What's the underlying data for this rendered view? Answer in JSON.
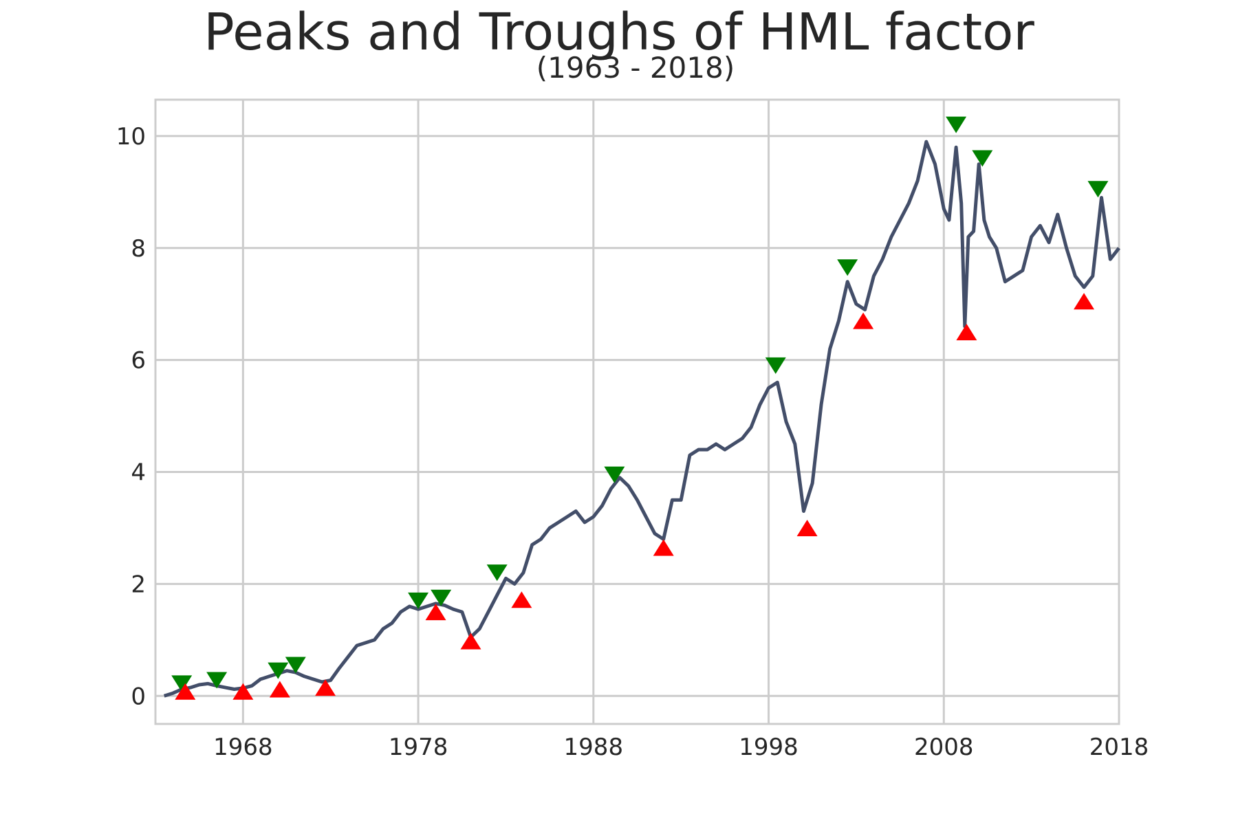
{
  "chart_data": {
    "type": "line",
    "title": "Peaks and Troughs of HML factor",
    "subtitle": "(1963 - 2018)",
    "xlabel": "",
    "ylabel": "",
    "xlim": [
      1963,
      2018
    ],
    "ylim": [
      -0.5,
      10.65
    ],
    "x_ticks": [
      1968,
      1978,
      1988,
      1998,
      2008,
      2018
    ],
    "y_ticks": [
      0,
      2,
      4,
      6,
      8,
      10
    ],
    "grid": true,
    "legend": "none",
    "colors": {
      "line": "#434e69",
      "peak": "#008000",
      "trough": "#ff0000",
      "grid": "#cccccc",
      "frame": "#cccccc"
    },
    "series": [
      {
        "x": [
          1963.5,
          1964.0,
          1964.5,
          1965.0,
          1965.5,
          1966.0,
          1966.5,
          1967.0,
          1967.5,
          1968.0,
          1968.5,
          1969.0,
          1969.5,
          1970.0,
          1970.5,
          1971.0,
          1971.5,
          1972.0,
          1972.5,
          1973.0,
          1973.5,
          1974.0,
          1974.5,
          1975.0,
          1975.5,
          1976.0,
          1976.5,
          1977.0,
          1977.5,
          1978.0,
          1978.5,
          1979.0,
          1979.5,
          1980.0,
          1980.5,
          1981.0,
          1981.5,
          1982.0,
          1982.5,
          1983.0,
          1983.5,
          1984.0,
          1984.5,
          1985.0,
          1985.5,
          1986.0,
          1986.5,
          1987.0,
          1987.5,
          1988.0,
          1988.5,
          1989.0,
          1989.5,
          1990.0,
          1990.5,
          1991.0,
          1991.5,
          1992.0,
          1992.5,
          1993.0,
          1993.5,
          1994.0,
          1994.5,
          1995.0,
          1995.5,
          1996.0,
          1996.5,
          1997.0,
          1997.5,
          1998.0,
          1998.5,
          1999.0,
          1999.5,
          2000.0,
          2000.5,
          2001.0,
          2001.5,
          2002.0,
          2002.5,
          2003.0,
          2003.5,
          2004.0,
          2004.5,
          2005.0,
          2005.5,
          2006.0,
          2006.5,
          2007.0,
          2007.5,
          2008.0,
          2008.3,
          2008.7,
          2009.0,
          2009.2,
          2009.4,
          2009.7,
          2010.0,
          2010.3,
          2010.6,
          2011.0,
          2011.5,
          2012.0,
          2012.5,
          2013.0,
          2013.5,
          2014.0,
          2014.5,
          2015.0,
          2015.5,
          2016.0,
          2016.5,
          2017.0,
          2017.5,
          2018.0
        ],
        "y": [
          0.0,
          0.05,
          0.12,
          0.15,
          0.2,
          0.22,
          0.18,
          0.15,
          0.12,
          0.14,
          0.18,
          0.3,
          0.35,
          0.4,
          0.45,
          0.42,
          0.35,
          0.3,
          0.25,
          0.28,
          0.5,
          0.7,
          0.9,
          0.95,
          1.0,
          1.2,
          1.3,
          1.5,
          1.6,
          1.55,
          1.6,
          1.65,
          1.62,
          1.55,
          1.5,
          1.05,
          1.2,
          1.5,
          1.8,
          2.1,
          2.0,
          2.2,
          2.7,
          2.8,
          3.0,
          3.1,
          3.2,
          3.3,
          3.1,
          3.2,
          3.4,
          3.7,
          3.9,
          3.75,
          3.5,
          3.2,
          2.9,
          2.8,
          3.5,
          3.5,
          4.3,
          4.4,
          4.4,
          4.5,
          4.4,
          4.5,
          4.6,
          4.8,
          5.2,
          5.5,
          5.6,
          4.9,
          4.5,
          3.3,
          3.8,
          5.2,
          6.2,
          6.7,
          7.4,
          7.0,
          6.9,
          7.5,
          7.8,
          8.2,
          8.5,
          8.8,
          9.2,
          9.9,
          9.5,
          8.7,
          8.5,
          9.8,
          8.8,
          6.6,
          8.2,
          8.3,
          9.5,
          8.5,
          8.2,
          8.0,
          7.4,
          7.5,
          7.6,
          8.2,
          8.4,
          8.1,
          8.6,
          8.0,
          7.5,
          7.3,
          7.5,
          8.9,
          7.8,
          8.0
        ]
      }
    ],
    "peaks": {
      "x": [
        1964.5,
        1966.5,
        1970.0,
        1971.0,
        1978.0,
        1979.3,
        1982.5,
        1989.2,
        1998.4,
        2002.5,
        2008.7,
        2010.2,
        2016.8
      ],
      "y": [
        0.22,
        0.28,
        0.45,
        0.55,
        1.7,
        1.75,
        2.2,
        3.95,
        5.9,
        7.65,
        10.2,
        9.6,
        9.05
      ]
    },
    "troughs": {
      "x": [
        1964.7,
        1968.0,
        1970.1,
        1972.7,
        1979.0,
        1981.0,
        1983.9,
        1992.0,
        2000.2,
        2003.4,
        2009.3,
        2016.0
      ],
      "y": [
        0.08,
        0.08,
        0.12,
        0.15,
        1.5,
        0.98,
        1.72,
        2.65,
        3.0,
        6.7,
        6.5,
        7.05
      ]
    }
  }
}
